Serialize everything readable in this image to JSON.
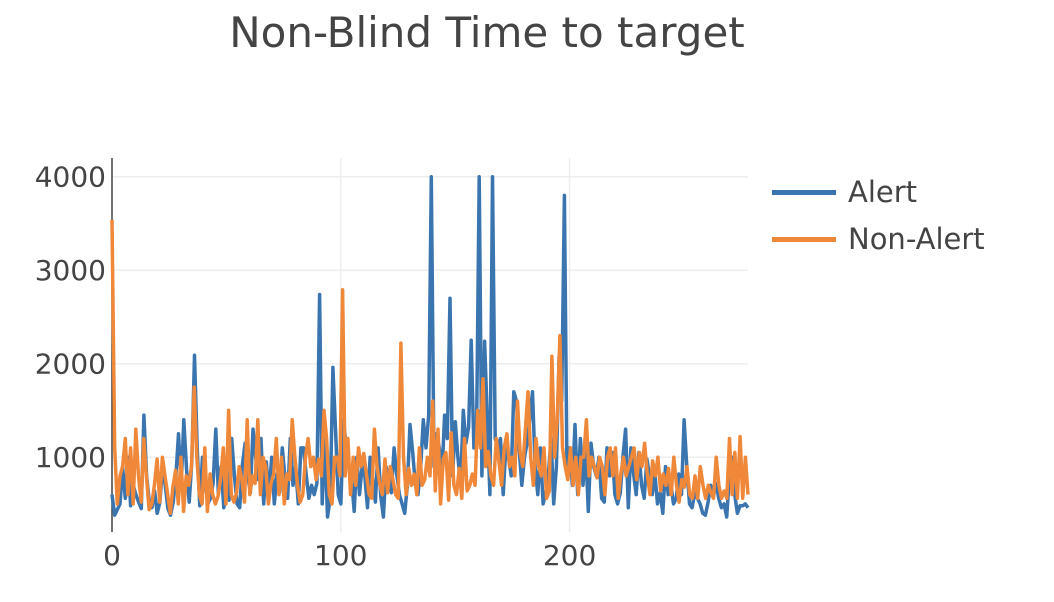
{
  "chart_data": {
    "type": "line",
    "title": "Non-Blind Time to target",
    "xlabel": "",
    "ylabel": "",
    "xlim": [
      0,
      278
    ],
    "ylim": [
      200,
      4200
    ],
    "x_ticks": [
      0,
      100,
      200
    ],
    "y_ticks": [
      1000,
      2000,
      3000,
      4000
    ],
    "grid": true,
    "legend_position": "right",
    "series": [
      {
        "name": "Alert",
        "color": "#3a75b0",
        "values": [
          600,
          380,
          440,
          500,
          900,
          560,
          1000,
          480,
          700,
          600,
          520,
          450,
          1450,
          800,
          520,
          460,
          640,
          400,
          520,
          900,
          700,
          450,
          380,
          520,
          800,
          1250,
          700,
          1400,
          880,
          520,
          950,
          2090,
          1100,
          480,
          1000,
          760,
          500,
          560,
          720,
          1300,
          600,
          900,
          460,
          620,
          540,
          1200,
          800,
          500,
          460,
          920,
          1150,
          800,
          620,
          1300,
          1000,
          760,
          1200,
          500,
          950,
          600,
          1000,
          500,
          820,
          620,
          1100,
          780,
          560,
          1200,
          700,
          900,
          500,
          1100,
          1100,
          800,
          560,
          700,
          600,
          720,
          2740,
          500,
          1200,
          360,
          560,
          1960,
          1300,
          600,
          500,
          1400,
          1100,
          900,
          780,
          420,
          1000,
          600,
          900,
          800,
          460,
          1000,
          760,
          520,
          1100,
          580,
          360,
          900,
          760,
          620,
          1100,
          820,
          600,
          500,
          400,
          700,
          1350,
          1050,
          700,
          600,
          900,
          1400,
          1100,
          1450,
          4000,
          900,
          1250,
          1100,
          820,
          1450,
          1200,
          2700,
          800,
          1380,
          1000,
          700,
          1500,
          1150,
          1320,
          2250,
          1100,
          1300,
          4000,
          800,
          2240,
          1450,
          600,
          4000,
          1200,
          1100,
          1200,
          600,
          1100,
          1000,
          800,
          1700,
          1600,
          1100,
          700,
          1000,
          1150,
          1400,
          1700,
          900,
          600,
          1100,
          500,
          620,
          820,
          1200,
          500,
          900,
          2080,
          1600,
          3800,
          820,
          1100,
          700,
          1350,
          600,
          1200,
          700,
          1100,
          420,
          1150,
          900,
          800,
          1000,
          560,
          520,
          1100,
          800,
          1050,
          600,
          500,
          620,
          1000,
          1300,
          460,
          1100,
          820,
          600,
          1050,
          700,
          560,
          980,
          800,
          600,
          820,
          500,
          620,
          400,
          900,
          600,
          720,
          500,
          560,
          820,
          600,
          1400,
          900,
          500,
          460,
          620,
          560,
          500,
          400,
          380,
          520,
          700,
          580,
          720,
          560,
          460,
          500,
          360,
          800,
          1000,
          600,
          400,
          480,
          480,
          500,
          460
        ],
        "comment_note": ""
      },
      {
        "name": "Non-Alert",
        "color": "#f0883a",
        "values": [
          3540,
          1100,
          500,
          800,
          900,
          1200,
          600,
          1100,
          500,
          1300,
          800,
          520,
          1200,
          800,
          440,
          500,
          700,
          980,
          520,
          1000,
          800,
          600,
          400,
          680,
          860,
          500,
          1000,
          420,
          800,
          700,
          900,
          1750,
          1000,
          600,
          500,
          1100,
          420,
          820,
          600,
          500,
          580,
          780,
          1100,
          500,
          1500,
          600,
          520,
          620,
          900,
          760,
          520,
          1400,
          600,
          800,
          720,
          1400,
          600,
          1000,
          900,
          500,
          720,
          820,
          1200,
          600,
          1000,
          500,
          820,
          760,
          1400,
          1000,
          700,
          520,
          600,
          1000,
          1200,
          900,
          1000,
          760,
          980,
          800,
          1500,
          1200,
          600,
          500,
          1000,
          1000,
          800,
          2790,
          800,
          1200,
          600,
          1000,
          700,
          1100,
          900,
          1040,
          820,
          600,
          560,
          1300,
          900,
          720,
          600,
          980,
          620,
          900,
          760,
          600,
          560,
          2220,
          1000,
          600,
          880,
          700,
          820,
          600,
          1100,
          700,
          760,
          1000,
          800,
          1600,
          640,
          1300,
          500,
          980,
          1050,
          540,
          1260,
          700,
          600,
          880,
          560,
          1200,
          640,
          700,
          820,
          700,
          1500,
          1100,
          1840,
          900,
          1060,
          800,
          700,
          1200,
          960,
          700,
          1100,
          1250,
          900,
          1000,
          800,
          1600,
          1050,
          900,
          1300,
          1700,
          1000,
          700,
          1200,
          900,
          800,
          1100,
          560,
          640,
          2080,
          1000,
          1400,
          2300,
          1100,
          900,
          760,
          1100,
          700,
          1000,
          600,
          1000,
          1000,
          1400,
          800,
          1000,
          900,
          780,
          1000,
          900,
          600,
          1000,
          1100,
          800,
          1100,
          560,
          820,
          1000,
          800,
          900,
          1000,
          1100,
          760,
          1050,
          900,
          1150,
          820,
          600,
          960,
          800,
          1000,
          640,
          820,
          700,
          880,
          600,
          1000,
          700,
          520,
          760,
          680,
          900,
          600,
          560,
          800,
          560,
          900,
          700,
          560,
          700,
          620,
          560,
          1000,
          700,
          560,
          640,
          560,
          1200,
          600,
          1050,
          560,
          1220,
          560,
          1000,
          600
        ],
        "comment_note": ""
      }
    ]
  }
}
